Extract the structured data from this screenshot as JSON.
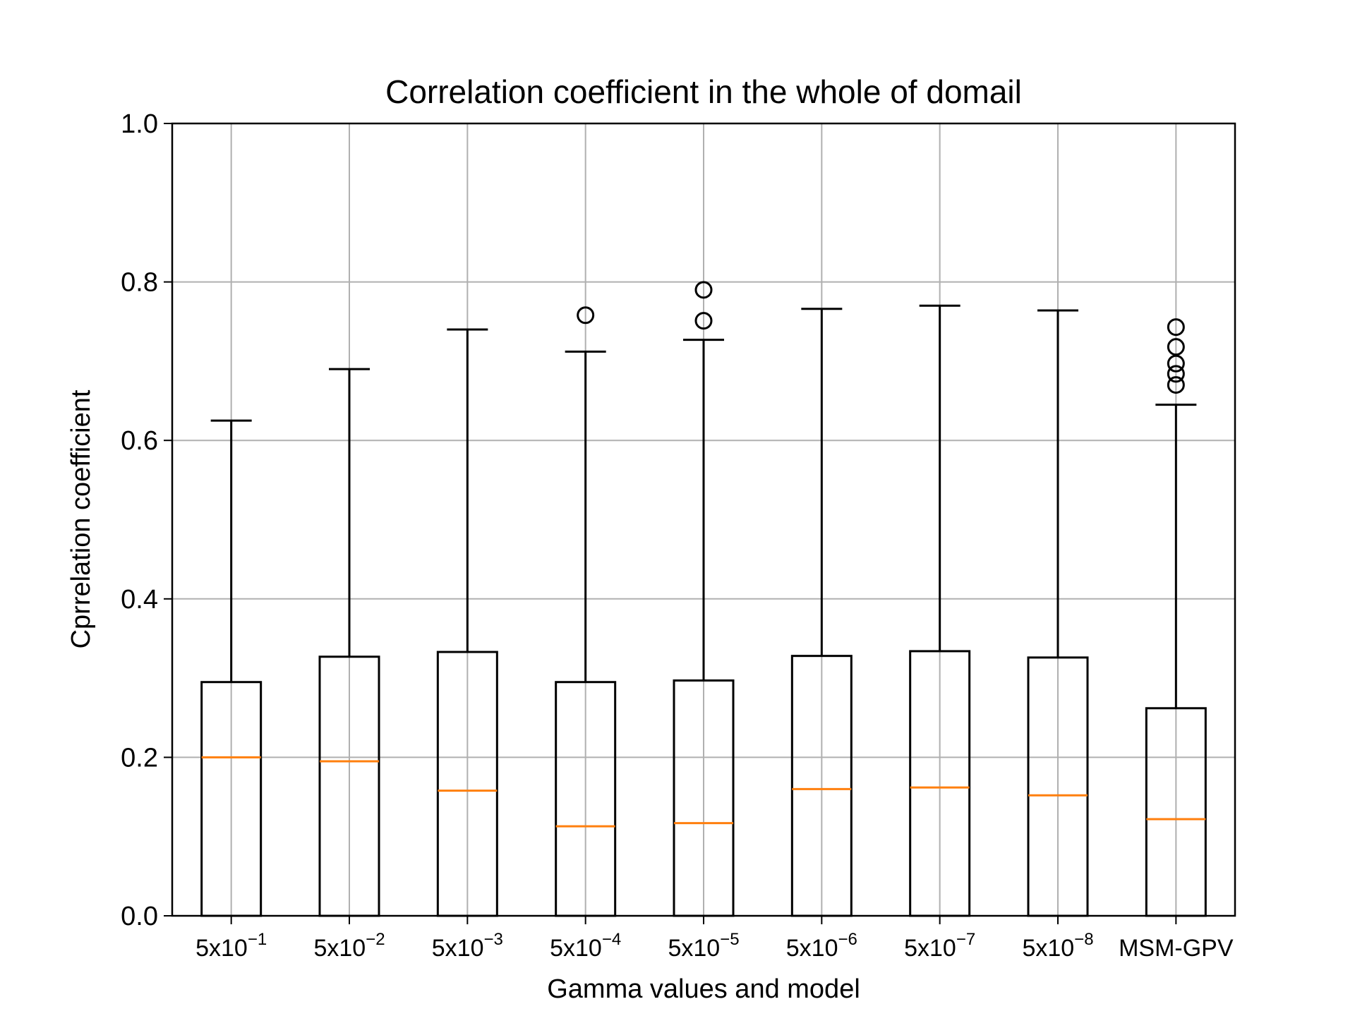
{
  "chart_data": {
    "type": "boxplot",
    "title": "Correlation coefficient in the whole of domail",
    "xlabel": "Gamma values and model",
    "ylabel": "Cprrelation coefficient",
    "ylim": [
      0.0,
      1.0
    ],
    "yticks": [
      "0.0",
      "0.2",
      "0.4",
      "0.6",
      "0.8",
      "1.0"
    ],
    "grid": true,
    "categories": [
      {
        "base": "5x10",
        "exp": "−1"
      },
      {
        "base": "5x10",
        "exp": "−2"
      },
      {
        "base": "5x10",
        "exp": "−3"
      },
      {
        "base": "5x10",
        "exp": "−4"
      },
      {
        "base": "5x10",
        "exp": "−5"
      },
      {
        "base": "5x10",
        "exp": "−6"
      },
      {
        "base": "5x10",
        "exp": "−7"
      },
      {
        "base": "5x10",
        "exp": "−8"
      },
      {
        "base": "MSM-GPV",
        "exp": ""
      }
    ],
    "boxes": [
      {
        "whisker_low": 0.0,
        "q1": 0.0,
        "median": 0.2,
        "q3": 0.295,
        "whisker_high": 0.625,
        "outliers": []
      },
      {
        "whisker_low": 0.0,
        "q1": 0.0,
        "median": 0.195,
        "q3": 0.327,
        "whisker_high": 0.69,
        "outliers": []
      },
      {
        "whisker_low": 0.0,
        "q1": 0.0,
        "median": 0.158,
        "q3": 0.333,
        "whisker_high": 0.74,
        "outliers": []
      },
      {
        "whisker_low": 0.0,
        "q1": 0.0,
        "median": 0.113,
        "q3": 0.295,
        "whisker_high": 0.712,
        "outliers": [
          0.758
        ]
      },
      {
        "whisker_low": 0.0,
        "q1": 0.0,
        "median": 0.117,
        "q3": 0.297,
        "whisker_high": 0.727,
        "outliers": [
          0.751,
          0.79
        ]
      },
      {
        "whisker_low": 0.0,
        "q1": 0.0,
        "median": 0.16,
        "q3": 0.328,
        "whisker_high": 0.766,
        "outliers": []
      },
      {
        "whisker_low": 0.0,
        "q1": 0.0,
        "median": 0.162,
        "q3": 0.334,
        "whisker_high": 0.77,
        "outliers": []
      },
      {
        "whisker_low": 0.0,
        "q1": 0.0,
        "median": 0.152,
        "q3": 0.326,
        "whisker_high": 0.764,
        "outliers": []
      },
      {
        "whisker_low": 0.0,
        "q1": 0.0,
        "median": 0.122,
        "q3": 0.262,
        "whisker_high": 0.645,
        "outliers": [
          0.67,
          0.684,
          0.697,
          0.718,
          0.743
        ]
      }
    ],
    "colors": {
      "box": "#000000",
      "median": "#ff7f0e",
      "grid": "#b0b0b0",
      "outlier": "#000000"
    }
  }
}
